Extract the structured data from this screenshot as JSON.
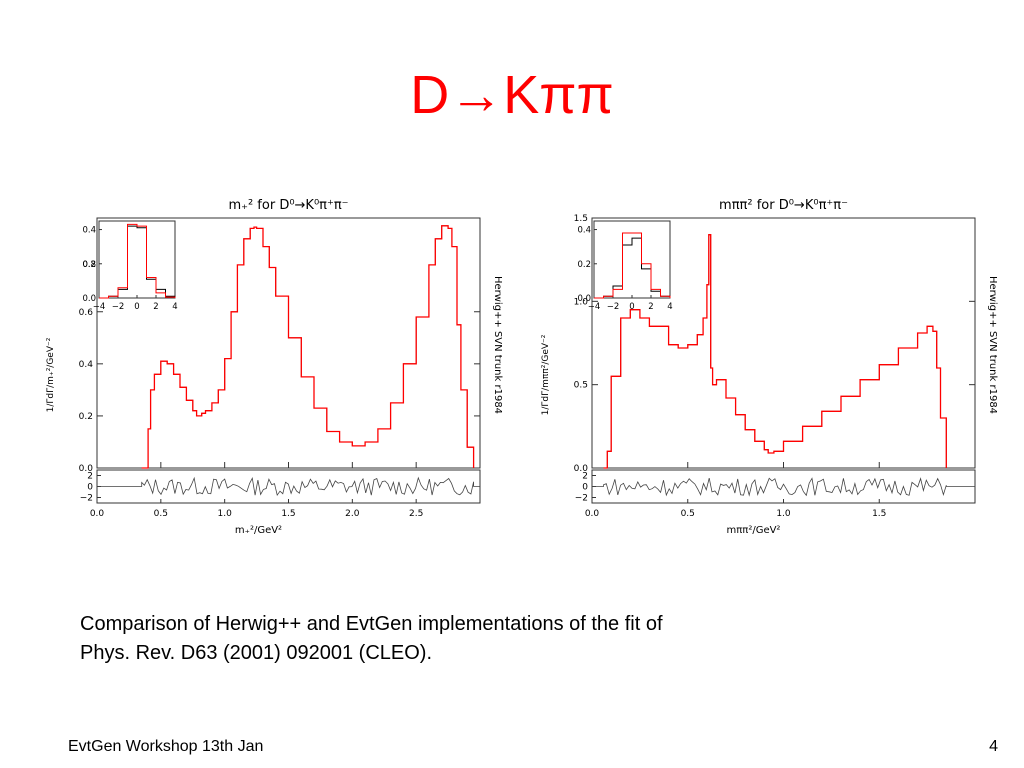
{
  "slide": {
    "title": "D→Kππ",
    "caption_line1": "Comparison of Herwig++ and EvtGen implementations of the fit of",
    "caption_line2": "Phys. Rev. D63 (2001) 092001 (CLEO).",
    "footer": "EvtGen Workshop 13th Jan",
    "page_number": "4"
  },
  "colors": {
    "title": "#ff0000",
    "herwig": "#ff0000",
    "evtgen": "#000000"
  },
  "chart_data": [
    {
      "type": "line",
      "title": "m₊² for D⁰→K⁰π⁺π⁻",
      "xlabel": "m₊²/GeV²",
      "ylabel": "1/ΓdΓ/m₊²/GeV⁻²",
      "side_label": "Herwig++ SVN trunk r1984",
      "xlim": [
        0,
        3.0
      ],
      "ylim": [
        0,
        0.96
      ],
      "x_ticks": [
        "0.0",
        "0.5",
        "1.0",
        "1.5",
        "2.0",
        "2.5"
      ],
      "y_ticks": [
        "0.0",
        "0.2",
        "0.4",
        "0.6"
      ],
      "x": [
        0.35,
        0.4,
        0.42,
        0.45,
        0.5,
        0.55,
        0.6,
        0.65,
        0.7,
        0.75,
        0.78,
        0.82,
        0.85,
        0.9,
        0.95,
        1.0,
        1.05,
        1.1,
        1.15,
        1.2,
        1.23,
        1.25,
        1.3,
        1.35,
        1.4,
        1.5,
        1.6,
        1.7,
        1.8,
        1.9,
        2.0,
        2.1,
        2.2,
        2.3,
        2.4,
        2.5,
        2.6,
        2.65,
        2.7,
        2.75,
        2.78,
        2.82,
        2.85,
        2.9,
        2.95
      ],
      "series": [
        {
          "name": "Herwig++",
          "values": [
            0,
            0.15,
            0.3,
            0.36,
            0.41,
            0.4,
            0.36,
            0.31,
            0.26,
            0.22,
            0.2,
            0.21,
            0.22,
            0.25,
            0.3,
            0.42,
            0.6,
            0.78,
            0.88,
            0.92,
            0.925,
            0.92,
            0.85,
            0.77,
            0.66,
            0.5,
            0.35,
            0.23,
            0.14,
            0.1,
            0.085,
            0.1,
            0.15,
            0.25,
            0.4,
            0.58,
            0.78,
            0.88,
            0.93,
            0.92,
            0.85,
            0.55,
            0.3,
            0.08,
            0
          ]
        },
        {
          "name": "EvtGen",
          "values": [
            0,
            0.15,
            0.3,
            0.36,
            0.41,
            0.4,
            0.36,
            0.31,
            0.26,
            0.22,
            0.2,
            0.21,
            0.22,
            0.25,
            0.3,
            0.42,
            0.6,
            0.78,
            0.88,
            0.92,
            0.925,
            0.92,
            0.85,
            0.77,
            0.66,
            0.5,
            0.35,
            0.23,
            0.14,
            0.1,
            0.085,
            0.1,
            0.15,
            0.25,
            0.4,
            0.58,
            0.78,
            0.88,
            0.93,
            0.92,
            0.85,
            0.55,
            0.3,
            0.08,
            0
          ]
        }
      ],
      "inset": {
        "x_ticks": [
          "−4",
          "−2",
          "0",
          "2",
          "4"
        ],
        "y_ticks": [
          "0.0",
          "0.2",
          "0.4"
        ],
        "y_overlap_label": "0.8",
        "xlim": [
          -4,
          4
        ],
        "ylim": [
          0,
          0.45
        ],
        "x": [
          -4,
          -3,
          -2,
          -1,
          0,
          1,
          2,
          3,
          4
        ],
        "series": [
          {
            "name": "Herwig++",
            "values": [
              0,
              0.01,
              0.06,
              0.43,
              0.42,
              0.12,
              0.03,
              0.005,
              0
            ]
          },
          {
            "name": "EvtGen",
            "values": [
              0,
              0.01,
              0.05,
              0.42,
              0.41,
              0.11,
              0.05,
              0.01,
              0
            ]
          }
        ]
      },
      "ratio": {
        "y_ticks": [
          "2",
          "0",
          "−2"
        ],
        "ylim": [
          -3,
          3
        ]
      }
    },
    {
      "type": "line",
      "title": "mππ² for D⁰→K⁰π⁺π⁻",
      "xlabel": "mππ²/GeV²",
      "ylabel": "1/ΓdΓ/mππ²/GeV⁻²",
      "side_label": "Herwig++ SVN trunk r1984",
      "xlim": [
        0,
        2.0
      ],
      "ylim": [
        0,
        1.5
      ],
      "x_ticks": [
        "0.0",
        "0.5",
        "1.0",
        "1.5"
      ],
      "y_ticks": [
        "0.0",
        "0.5",
        "1.0",
        "1.5"
      ],
      "x": [
        0.06,
        0.08,
        0.1,
        0.15,
        0.2,
        0.25,
        0.3,
        0.4,
        0.45,
        0.5,
        0.55,
        0.58,
        0.6,
        0.61,
        0.62,
        0.63,
        0.65,
        0.7,
        0.75,
        0.8,
        0.85,
        0.9,
        0.92,
        0.95,
        1.0,
        1.1,
        1.2,
        1.3,
        1.4,
        1.5,
        1.6,
        1.7,
        1.75,
        1.78,
        1.8,
        1.82,
        1.85
      ],
      "series": [
        {
          "name": "Herwig++",
          "values": [
            0,
            0.1,
            0.55,
            0.9,
            0.95,
            0.9,
            0.85,
            0.74,
            0.72,
            0.74,
            0.8,
            0.9,
            1.1,
            1.4,
            0.6,
            0.5,
            0.53,
            0.42,
            0.32,
            0.23,
            0.16,
            0.11,
            0.09,
            0.1,
            0.16,
            0.25,
            0.34,
            0.43,
            0.53,
            0.62,
            0.72,
            0.81,
            0.85,
            0.82,
            0.6,
            0.3,
            0
          ]
        },
        {
          "name": "EvtGen",
          "values": [
            0,
            0.1,
            0.55,
            0.9,
            0.95,
            0.9,
            0.85,
            0.74,
            0.72,
            0.74,
            0.8,
            0.9,
            1.1,
            1.4,
            0.6,
            0.5,
            0.53,
            0.42,
            0.32,
            0.23,
            0.16,
            0.11,
            0.09,
            0.1,
            0.16,
            0.25,
            0.34,
            0.43,
            0.53,
            0.62,
            0.72,
            0.81,
            0.85,
            0.82,
            0.6,
            0.3,
            0
          ]
        }
      ],
      "inset": {
        "x_ticks": [
          "−4",
          "−2",
          "0",
          "2",
          "4"
        ],
        "y_ticks": [
          "0.0",
          "0.2",
          "0.4"
        ],
        "xlim": [
          -4,
          4
        ],
        "ylim": [
          0,
          0.45
        ],
        "x": [
          -4,
          -3,
          -2,
          -1,
          0,
          1,
          2,
          3,
          4
        ],
        "series": [
          {
            "name": "Herwig++",
            "values": [
              0,
              0.01,
              0.05,
              0.38,
              0.38,
              0.2,
              0.05,
              0.01,
              0
            ]
          },
          {
            "name": "EvtGen",
            "values": [
              0,
              0.01,
              0.07,
              0.31,
              0.35,
              0.17,
              0.04,
              0.01,
              0
            ]
          }
        ]
      },
      "ratio": {
        "y_ticks": [
          "2",
          "0",
          "−2"
        ],
        "ylim": [
          -3,
          3
        ]
      }
    }
  ]
}
